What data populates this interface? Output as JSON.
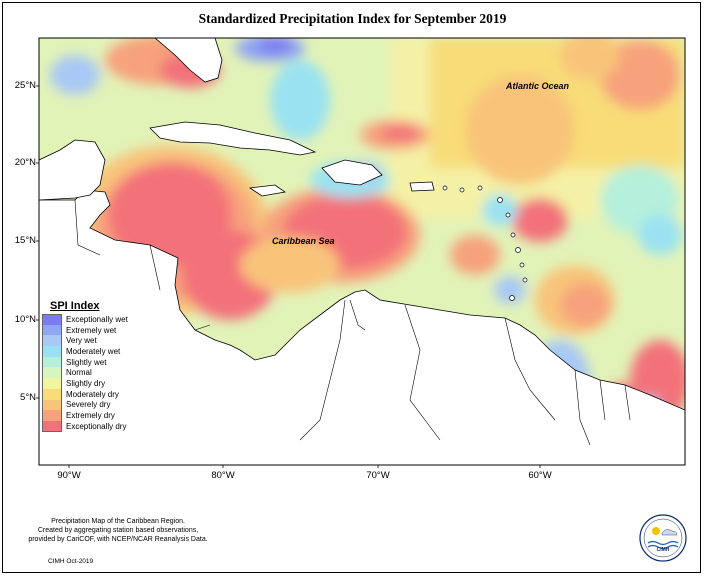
{
  "map": {
    "title": "Standardized Precipitation Index for September 2019",
    "lat_ticks": [
      "25°N",
      "20°N",
      "15°N",
      "10°N",
      "5°N"
    ],
    "lon_ticks": [
      "90°W",
      "80°W",
      "70°W",
      "60°W"
    ],
    "ocean_labels": {
      "atlantic": "Atlantic Ocean",
      "caribbean": "Caribbean Sea"
    }
  },
  "legend": {
    "title": "SPI Index",
    "items": [
      {
        "label": "Exceptionally wet",
        "color": "#7b7bf2"
      },
      {
        "label": "Extremely wet",
        "color": "#8fa6f2"
      },
      {
        "label": "Very wet",
        "color": "#a8c8f5"
      },
      {
        "label": "Moderately wet",
        "color": "#9ae2f2"
      },
      {
        "label": "Slightly wet",
        "color": "#b5f0dc"
      },
      {
        "label": "Normal",
        "color": "#d8f5bf"
      },
      {
        "label": "Slightly dry",
        "color": "#f0f5a0"
      },
      {
        "label": "Moderately dry",
        "color": "#f8dc78"
      },
      {
        "label": "Severely dry",
        "color": "#f8c47a"
      },
      {
        "label": "Extremely dry",
        "color": "#f7a27c"
      },
      {
        "label": "Exceptionally dry",
        "color": "#f3727a"
      }
    ]
  },
  "footer": {
    "description_lines": [
      "Precipitation Map of the Caribbean Region.",
      "Created by aggregating station based observations,",
      "provided by CariCOF, with NCEP/NCAR Reanalysis Data."
    ],
    "credit": "CIMH Oct-2019",
    "logo_text": "CIMH"
  }
}
